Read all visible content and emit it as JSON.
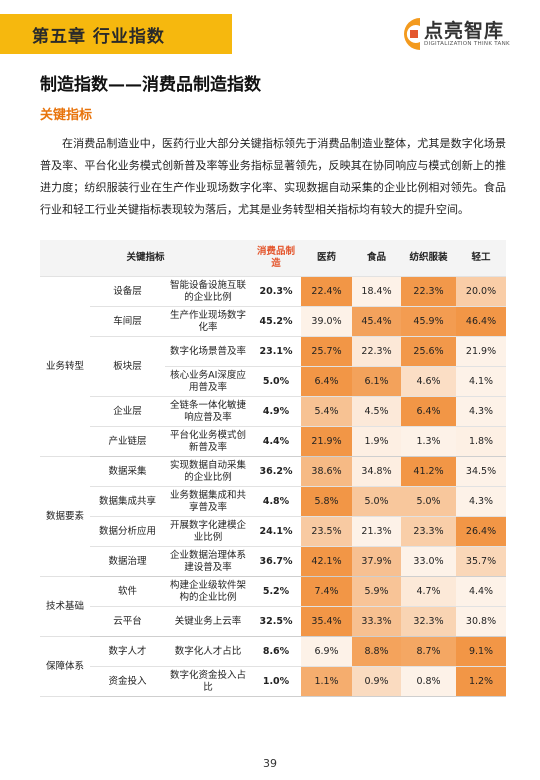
{
  "header": {
    "chapter": "第五章  行业指数",
    "logo_name": "点亮智库",
    "logo_sub": "DIGITALIZATION THINK TANK"
  },
  "title": "制造指数——消费品制造指数",
  "subtitle": "关键指标",
  "paragraph": "在消费品制造业中，医药行业大部分关键指标领先于消费品制造业整体，尤其是数字化场景普及率、平台化业务模式创新普及率等业务指标显著领先，反映其在协同响应与模式创新上的推进力度；纺织服装行业在生产作业现场数字化率、实现数据自动采集的企业比例相对领先。食品行业和轻工行业关键指标表现较为落后，尤其是业务转型相关指标均有较大的提升空间。",
  "table": {
    "header": {
      "indicator": "关键指标",
      "columns": [
        "消费品制造",
        "医药",
        "食品",
        "纺织服装",
        "轻工"
      ]
    },
    "groups": [
      {
        "name": "业务转型",
        "layers": [
          {
            "name": "设备层",
            "rows": [
              {
                "indicator": "智能设备设施互联的企业比例",
                "values": [
                  "20.3%",
                  "22.4%",
                  "18.4%",
                  "22.3%",
                  "20.0%"
                ]
              }
            ]
          },
          {
            "name": "车间层",
            "rows": [
              {
                "indicator": "生产作业现场数字化率",
                "values": [
                  "45.2%",
                  "39.0%",
                  "45.4%",
                  "45.9%",
                  "46.4%"
                ]
              }
            ]
          },
          {
            "name": "板块层",
            "rows": [
              {
                "indicator": "数字化场景普及率",
                "values": [
                  "23.1%",
                  "25.7%",
                  "22.3%",
                  "25.6%",
                  "21.9%"
                ]
              },
              {
                "indicator": "核心业务AI深度应用普及率",
                "values": [
                  "5.0%",
                  "6.4%",
                  "6.1%",
                  "4.6%",
                  "4.1%"
                ]
              }
            ]
          },
          {
            "name": "企业层",
            "rows": [
              {
                "indicator": "全链条一体化敏捷响应普及率",
                "values": [
                  "4.9%",
                  "5.4%",
                  "4.5%",
                  "6.4%",
                  "4.3%"
                ]
              }
            ]
          },
          {
            "name": "产业链层",
            "rows": [
              {
                "indicator": "平台化业务模式创新普及率",
                "values": [
                  "4.4%",
                  "21.9%",
                  "1.9%",
                  "1.3%",
                  "1.8%"
                ]
              }
            ]
          }
        ]
      },
      {
        "name": "数据要素",
        "layers": [
          {
            "name": "数据采集",
            "rows": [
              {
                "indicator": "实现数据自动采集的企业比例",
                "values": [
                  "36.2%",
                  "38.6%",
                  "34.8%",
                  "41.2%",
                  "34.5%"
                ]
              }
            ]
          },
          {
            "name": "数据集成共享",
            "rows": [
              {
                "indicator": "业务数据集成和共享普及率",
                "values": [
                  "4.8%",
                  "5.8%",
                  "5.0%",
                  "5.0%",
                  "4.3%"
                ]
              }
            ]
          },
          {
            "name": "数据分析应用",
            "rows": [
              {
                "indicator": "开展数字化建模企业比例",
                "values": [
                  "24.1%",
                  "23.5%",
                  "21.3%",
                  "23.3%",
                  "26.4%"
                ]
              }
            ]
          },
          {
            "name": "数据治理",
            "rows": [
              {
                "indicator": "企业数据治理体系建设普及率",
                "values": [
                  "36.7%",
                  "42.1%",
                  "37.9%",
                  "33.0%",
                  "35.7%"
                ]
              }
            ]
          }
        ]
      },
      {
        "name": "技术基础",
        "layers": [
          {
            "name": "软件",
            "rows": [
              {
                "indicator": "构建企业级软件架构的企业比例",
                "values": [
                  "5.2%",
                  "7.4%",
                  "5.9%",
                  "4.7%",
                  "4.4%"
                ]
              }
            ]
          },
          {
            "name": "云平台",
            "rows": [
              {
                "indicator": "关键业务上云率",
                "values": [
                  "32.5%",
                  "35.4%",
                  "33.3%",
                  "32.3%",
                  "30.8%"
                ]
              }
            ]
          }
        ]
      },
      {
        "name": "保障体系",
        "layers": [
          {
            "name": "数字人才",
            "rows": [
              {
                "indicator": "数字化人才占比",
                "values": [
                  "8.6%",
                  "6.9%",
                  "8.8%",
                  "8.7%",
                  "9.1%"
                ]
              }
            ]
          },
          {
            "name": "资金投入",
            "rows": [
              {
                "indicator": "数字化资金投入占比",
                "values": [
                  "1.0%",
                  "1.1%",
                  "0.9%",
                  "0.8%",
                  "1.2%"
                ]
              }
            ]
          }
        ]
      }
    ]
  },
  "page_number": "39"
}
